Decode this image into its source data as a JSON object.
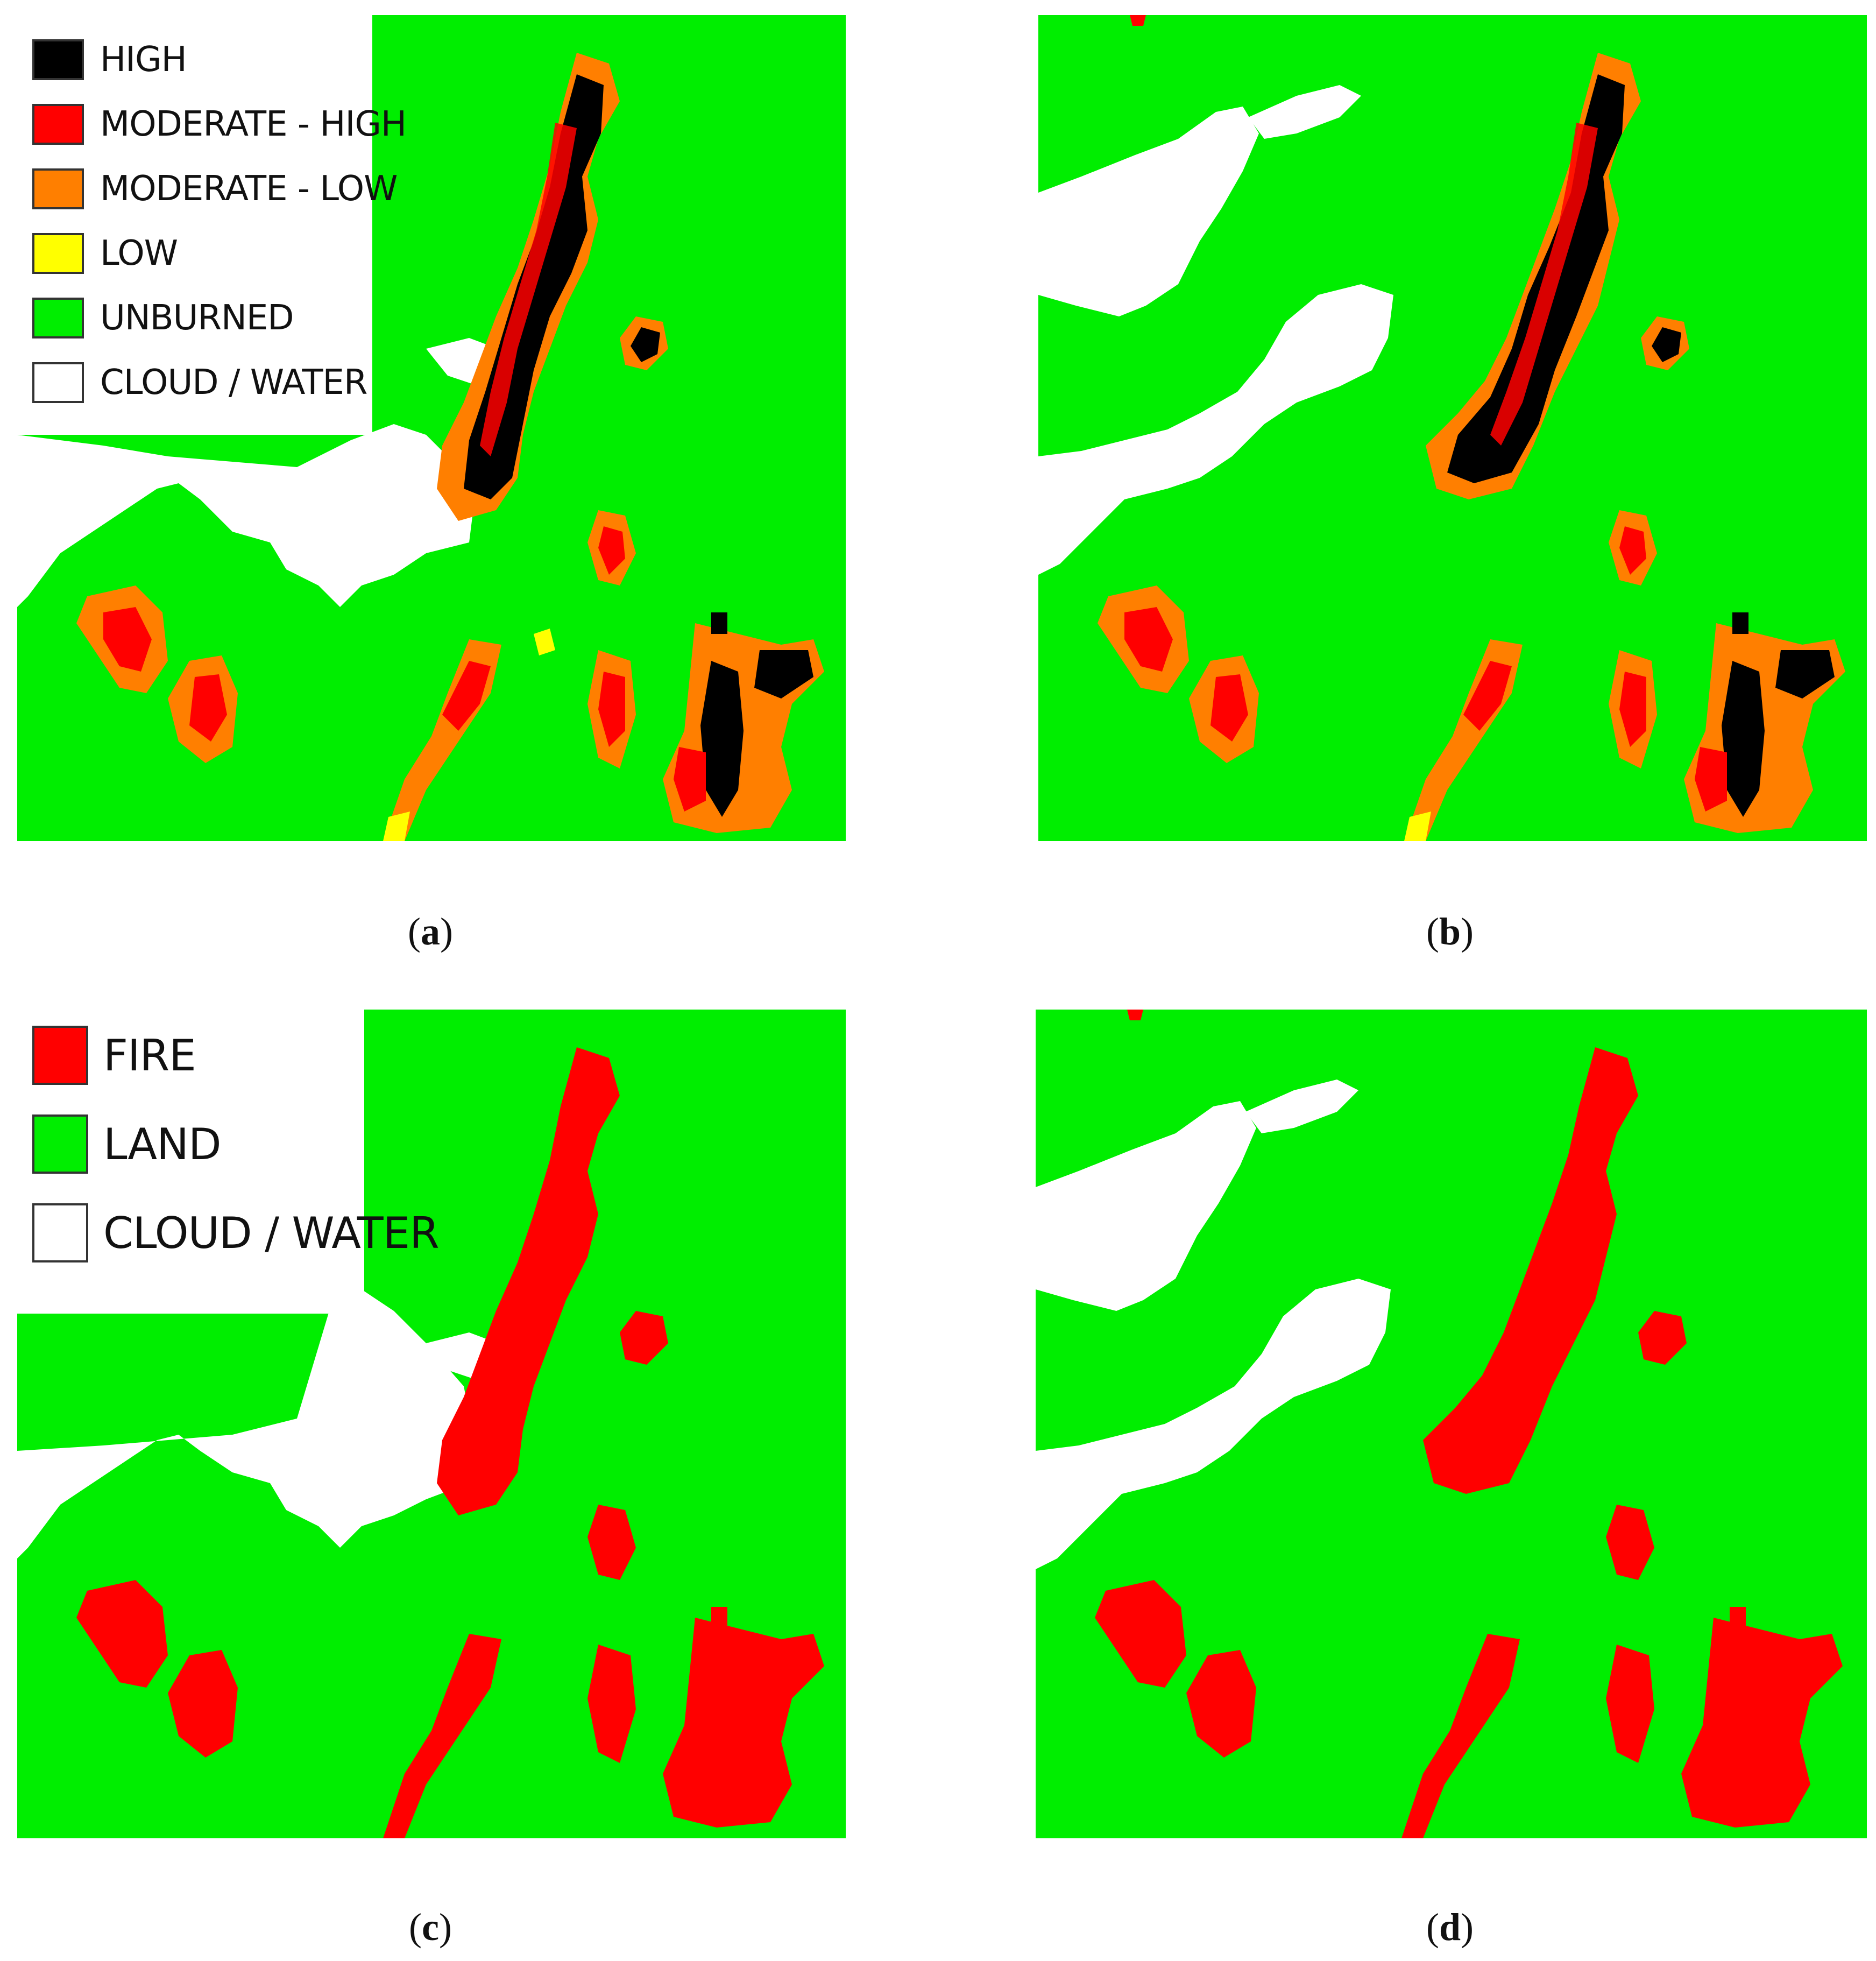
{
  "legend_a": {
    "items": [
      {
        "label": "HIGH",
        "color": "#000000"
      },
      {
        "label": "MODERATE - HIGH",
        "color": "#ff0000"
      },
      {
        "label": "MODERATE - LOW",
        "color": "#ff7f00"
      },
      {
        "label": "LOW",
        "color": "#ffff00"
      },
      {
        "label": "UNBURNED",
        "color": "#00ee00"
      },
      {
        "label": "CLOUD / WATER",
        "color": "#ffffff"
      }
    ]
  },
  "legend_c": {
    "items": [
      {
        "label": "FIRE",
        "color": "#ff0000"
      },
      {
        "label": "LAND",
        "color": "#00ee00"
      },
      {
        "label": "CLOUD / WATER",
        "color": "#ffffff"
      }
    ]
  },
  "captions": {
    "a": "a",
    "b": "b",
    "c": "c",
    "d": "d"
  },
  "colors": {
    "unburned": "#00ee00",
    "cloud_water": "#ffffff",
    "high": "#000000",
    "moderate_high": "#ff0000",
    "moderate_low": "#ff7f00",
    "low": "#ffff00",
    "fire": "#ff0000"
  }
}
